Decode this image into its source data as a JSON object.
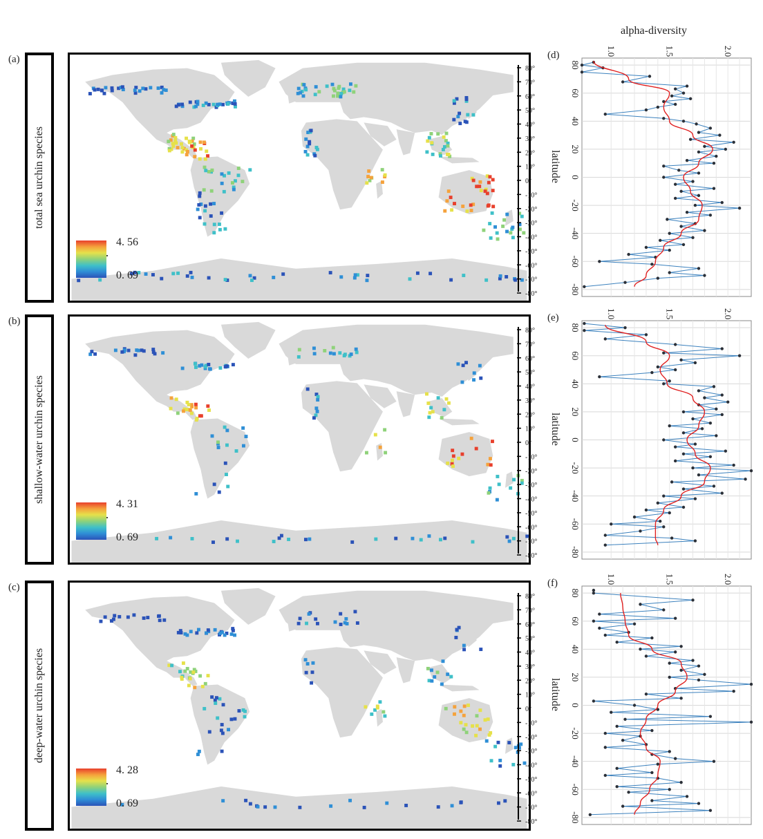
{
  "x_axis_title": "alpha-diversity",
  "y_axis_title": "latitude",
  "land_color": "#d9d9d9",
  "frame_color": "#000000",
  "series_color": "#3a80bd",
  "point_color": "#2b3038",
  "trend_color": "#e02020",
  "colormap": [
    "#2b53b8",
    "#2f8fd6",
    "#3fc0c8",
    "#8fd27a",
    "#e6e14a",
    "#f5a23c",
    "#e8402c"
  ],
  "lat_ticks": [
    "80°",
    "70°",
    "60°",
    "50°",
    "40°",
    "30°",
    "20°",
    "10°",
    "0°",
    "-10°",
    "-20°",
    "-30°",
    "-40°",
    "-50°",
    "-60°",
    "-70°",
    "-80°"
  ],
  "panels": [
    {
      "letter": "(a)",
      "label": "total sea urchin species",
      "cb_max": "4. 56",
      "cb_min": "0. 69"
    },
    {
      "letter": "(b)",
      "label": "shallow-water urchin species",
      "cb_max": "4. 31",
      "cb_min": "0. 69"
    },
    {
      "letter": "(c)",
      "label": "deep-water urchin species",
      "cb_max": "4. 28",
      "cb_min": "0. 69"
    }
  ],
  "chart_data": [
    {
      "panel": "(d)",
      "type": "line",
      "xlabel": "alpha-diversity",
      "ylabel": "latitude",
      "xlim": [
        0.75,
        2.2
      ],
      "ylim": [
        -85,
        85
      ],
      "x_ticks": [
        "1.0",
        "1.5",
        "2.0"
      ],
      "x_tick_values": [
        1.0,
        1.5,
        2.0
      ],
      "y_ticks": [
        "80",
        "60",
        "40",
        "20",
        "0",
        "-20",
        "-40",
        "-60",
        "-80"
      ],
      "y_tick_values": [
        80,
        60,
        40,
        20,
        0,
        -20,
        -40,
        -60,
        -80
      ],
      "series": [
        {
          "y": [
            82,
            80,
            78,
            75,
            72,
            68,
            65,
            63,
            60,
            58,
            56,
            54,
            52,
            50,
            48,
            45,
            42,
            40,
            38,
            35,
            32,
            30,
            27,
            25,
            22,
            20,
            18,
            15,
            12,
            10,
            8,
            5,
            3,
            0,
            -3,
            -5,
            -8,
            -10,
            -13,
            -15,
            -18,
            -20,
            -22,
            -25,
            -27,
            -30,
            -33,
            -35,
            -38,
            -40,
            -43,
            -45,
            -48,
            -50,
            -52,
            -55,
            -57,
            -60,
            -62,
            -65,
            -68,
            -70,
            -72,
            -75,
            -78
          ],
          "x": [
            0.85,
            0.75,
            0.93,
            0.75,
            1.33,
            1.1,
            1.65,
            1.55,
            1.62,
            1.52,
            1.68,
            1.45,
            1.55,
            1.4,
            1.3,
            0.95,
            1.45,
            1.62,
            1.73,
            1.85,
            1.75,
            1.93,
            1.68,
            2.05,
            1.8,
            1.98,
            1.75,
            1.9,
            1.65,
            1.88,
            1.45,
            1.58,
            1.75,
            1.45,
            1.7,
            1.55,
            1.88,
            1.6,
            1.75,
            1.55,
            1.95,
            1.72,
            2.1,
            1.65,
            1.85,
            1.48,
            1.72,
            1.6,
            1.8,
            1.5,
            1.7,
            1.42,
            1.62,
            1.3,
            1.5,
            1.15,
            1.38,
            0.9,
            1.35,
            1.75,
            1.5,
            1.8,
            1.4,
            1.12,
            0.77
          ]
        },
        {
          "name": "",
          "y": [
            83,
            70,
            60,
            50,
            40,
            30,
            20,
            10,
            0,
            -10,
            -20,
            -30,
            -40,
            -50,
            -60,
            -70,
            -78
          ],
          "x": [
            0.85,
            1.15,
            1.5,
            1.45,
            1.5,
            1.7,
            1.87,
            1.75,
            1.62,
            1.68,
            1.78,
            1.75,
            1.6,
            1.45,
            1.38,
            1.3,
            1.2
          ],
          "role": "trend"
        }
      ]
    },
    {
      "panel": "(e)",
      "type": "line",
      "xlabel": "",
      "ylabel": "latitude",
      "xlim": [
        0.75,
        2.2
      ],
      "ylim": [
        -85,
        85
      ],
      "x_ticks": [
        "1.0",
        "1.5",
        "2.0"
      ],
      "x_tick_values": [
        1.0,
        1.5,
        2.0
      ],
      "y_ticks": [
        "80",
        "60",
        "40",
        "20",
        "0",
        "-20",
        "-40",
        "-60",
        "-80"
      ],
      "y_tick_values": [
        80,
        60,
        40,
        20,
        0,
        -20,
        -40,
        -60,
        -80
      ],
      "series": [
        {
          "y": [
            83,
            80,
            78,
            75,
            72,
            68,
            65,
            62,
            60,
            57,
            55,
            52,
            50,
            48,
            45,
            42,
            40,
            38,
            35,
            32,
            30,
            27,
            25,
            22,
            20,
            18,
            15,
            12,
            10,
            8,
            5,
            3,
            0,
            -3,
            -5,
            -8,
            -10,
            -12,
            -15,
            -18,
            -20,
            -22,
            -25,
            -28,
            -30,
            -33,
            -35,
            -38,
            -40,
            -42,
            -45,
            -48,
            -50,
            -52,
            -55,
            -58,
            -60,
            -62,
            -65,
            -68,
            -70,
            -72,
            -75
          ],
          "x": [
            0.77,
            1.12,
            0.77,
            1.3,
            0.95,
            1.55,
            1.95,
            1.45,
            2.1,
            1.6,
            1.72,
            1.4,
            1.55,
            1.35,
            0.9,
            1.5,
            1.45,
            1.88,
            1.75,
            1.95,
            1.8,
            2.0,
            1.75,
            1.9,
            1.62,
            1.95,
            1.7,
            1.85,
            1.5,
            1.78,
            1.62,
            1.9,
            1.45,
            1.72,
            1.55,
            1.98,
            1.62,
            1.85,
            1.55,
            2.05,
            1.7,
            2.25,
            1.75,
            2.15,
            1.52,
            1.88,
            1.62,
            1.95,
            1.45,
            1.72,
            1.4,
            1.62,
            1.3,
            1.5,
            1.2,
            1.42,
            1.0,
            1.45,
            1.25,
            0.95,
            1.52,
            1.72,
            0.95
          ]
        },
        {
          "name": "",
          "y": [
            82,
            70,
            60,
            50,
            40,
            30,
            20,
            10,
            0,
            -10,
            -20,
            -30,
            -40,
            -50,
            -60,
            -70,
            -75
          ],
          "x": [
            0.95,
            1.3,
            1.5,
            1.42,
            1.48,
            1.7,
            1.8,
            1.75,
            1.65,
            1.72,
            1.85,
            1.8,
            1.6,
            1.45,
            1.38,
            1.38,
            1.4
          ],
          "role": "trend"
        }
      ]
    },
    {
      "panel": "(f)",
      "type": "line",
      "xlabel": "",
      "ylabel": "latitude",
      "xlim": [
        0.75,
        2.2
      ],
      "ylim": [
        -85,
        85
      ],
      "x_ticks": [
        "1.0",
        "1.5",
        "2.0"
      ],
      "x_tick_values": [
        1.0,
        1.5,
        2.0
      ],
      "y_ticks": [
        "80",
        "60",
        "40",
        "20",
        "0",
        "-20",
        "-40",
        "-60",
        "-80"
      ],
      "y_tick_values": [
        80,
        60,
        40,
        20,
        0,
        -20,
        -40,
        -60,
        -80
      ],
      "series": [
        {
          "y": [
            82,
            80,
            75,
            72,
            68,
            65,
            62,
            60,
            58,
            55,
            52,
            50,
            48,
            45,
            42,
            40,
            38,
            35,
            32,
            30,
            28,
            25,
            22,
            20,
            18,
            15,
            12,
            10,
            8,
            5,
            3,
            0,
            -3,
            -5,
            -8,
            -10,
            -12,
            -15,
            -18,
            -20,
            -22,
            -25,
            -28,
            -30,
            -33,
            -35,
            -38,
            -40,
            -42,
            -45,
            -48,
            -50,
            -52,
            -55,
            -58,
            -60,
            -62,
            -65,
            -68,
            -70,
            -72,
            -75,
            -78
          ],
          "x": [
            0.85,
            0.85,
            1.7,
            1.25,
            1.45,
            0.9,
            1.55,
            0.85,
            1.2,
            0.9,
            1.15,
            0.95,
            1.35,
            1.05,
            1.6,
            1.25,
            1.55,
            1.3,
            1.7,
            1.5,
            1.75,
            1.6,
            1.8,
            1.5,
            1.75,
            2.35,
            1.55,
            2.05,
            1.3,
            1.6,
            0.85,
            1.2,
            1.4,
            1.0,
            1.85,
            1.12,
            2.7,
            1.05,
            1.35,
            0.95,
            1.25,
            1.1,
            1.3,
            0.95,
            1.5,
            1.35,
            1.55,
            1.88,
            1.4,
            1.05,
            1.35,
            0.95,
            1.4,
            1.6,
            1.05,
            1.5,
            1.15,
            1.65,
            1.35,
            1.75,
            1.1,
            1.85,
            0.82
          ]
        },
        {
          "name": "",
          "y": [
            80,
            70,
            60,
            50,
            40,
            30,
            20,
            10,
            0,
            -10,
            -20,
            -30,
            -40,
            -50,
            -60,
            -70,
            -78
          ],
          "x": [
            1.08,
            1.1,
            1.12,
            1.15,
            1.35,
            1.6,
            1.65,
            1.55,
            1.4,
            1.3,
            1.25,
            1.3,
            1.42,
            1.4,
            1.33,
            1.25,
            1.2
          ],
          "role": "trend"
        }
      ]
    }
  ]
}
